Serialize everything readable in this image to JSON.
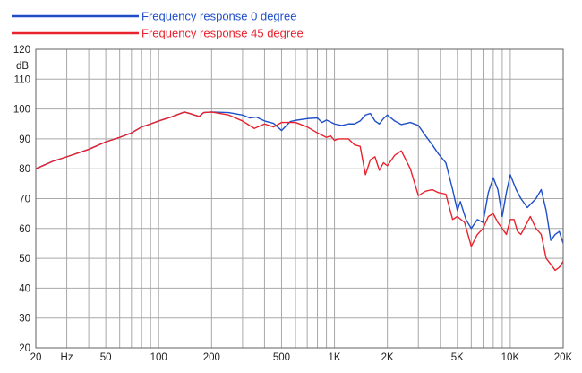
{
  "chart_data": {
    "type": "line",
    "title": "",
    "xlabel": "",
    "ylabel": "dB",
    "x_scale": "log",
    "xlim": [
      20,
      20000
    ],
    "ylim": [
      20,
      120
    ],
    "grid": true,
    "legend": "top-left",
    "x_tick_labels": [
      {
        "value": 20,
        "label": "20"
      },
      {
        "value": 30,
        "label": "Hz"
      },
      {
        "value": 50,
        "label": "50"
      },
      {
        "value": 100,
        "label": "100"
      },
      {
        "value": 200,
        "label": "200"
      },
      {
        "value": 500,
        "label": "500"
      },
      {
        "value": 1000,
        "label": "1K"
      },
      {
        "value": 2000,
        "label": "2K"
      },
      {
        "value": 5000,
        "label": "5K"
      },
      {
        "value": 10000,
        "label": "10K"
      },
      {
        "value": 20000,
        "label": "20K"
      }
    ],
    "y_ticks": [
      20,
      30,
      40,
      50,
      60,
      70,
      80,
      90,
      100,
      110,
      120
    ],
    "series": [
      {
        "name": "Frequency response 0 degree",
        "color": "#1f4fc8",
        "points": [
          [
            20,
            80
          ],
          [
            25,
            82.5
          ],
          [
            30,
            84
          ],
          [
            40,
            86.5
          ],
          [
            50,
            89
          ],
          [
            60,
            90.5
          ],
          [
            70,
            92
          ],
          [
            80,
            94
          ],
          [
            90,
            95
          ],
          [
            100,
            96
          ],
          [
            120,
            97.5
          ],
          [
            140,
            99
          ],
          [
            150,
            98.5
          ],
          [
            170,
            97.5
          ],
          [
            180,
            98.8
          ],
          [
            200,
            99
          ],
          [
            250,
            98.8
          ],
          [
            300,
            98
          ],
          [
            330,
            97
          ],
          [
            360,
            97.3
          ],
          [
            400,
            96
          ],
          [
            450,
            95.2
          ],
          [
            500,
            92.8
          ],
          [
            560,
            95.8
          ],
          [
            600,
            96.2
          ],
          [
            700,
            96.8
          ],
          [
            800,
            97
          ],
          [
            850,
            95.5
          ],
          [
            900,
            96.3
          ],
          [
            1000,
            95
          ],
          [
            1100,
            94.5
          ],
          [
            1200,
            95
          ],
          [
            1300,
            95
          ],
          [
            1400,
            96
          ],
          [
            1500,
            98
          ],
          [
            1600,
            98.5
          ],
          [
            1700,
            96
          ],
          [
            1800,
            95
          ],
          [
            1900,
            96.8
          ],
          [
            2000,
            98
          ],
          [
            2200,
            96
          ],
          [
            2400,
            94.8
          ],
          [
            2700,
            95.5
          ],
          [
            3000,
            94.5
          ],
          [
            3300,
            91
          ],
          [
            3600,
            88
          ],
          [
            3900,
            85
          ],
          [
            4300,
            82
          ],
          [
            4700,
            73
          ],
          [
            5000,
            66
          ],
          [
            5200,
            69
          ],
          [
            5600,
            63
          ],
          [
            6000,
            60
          ],
          [
            6500,
            63
          ],
          [
            7000,
            62
          ],
          [
            7500,
            72
          ],
          [
            8000,
            77
          ],
          [
            8500,
            73
          ],
          [
            9000,
            64
          ],
          [
            9500,
            72
          ],
          [
            10000,
            78
          ],
          [
            10800,
            73
          ],
          [
            11500,
            70
          ],
          [
            12500,
            67
          ],
          [
            14000,
            70
          ],
          [
            15000,
            73
          ],
          [
            16000,
            66
          ],
          [
            17000,
            56
          ],
          [
            18000,
            58
          ],
          [
            19000,
            59
          ],
          [
            20000,
            55
          ]
        ]
      },
      {
        "name": "Frequency response 45 degree",
        "color": "#e8232e",
        "points": [
          [
            20,
            80
          ],
          [
            25,
            82.5
          ],
          [
            30,
            84
          ],
          [
            40,
            86.5
          ],
          [
            50,
            89
          ],
          [
            60,
            90.5
          ],
          [
            70,
            92
          ],
          [
            80,
            94
          ],
          [
            90,
            95
          ],
          [
            100,
            96
          ],
          [
            120,
            97.5
          ],
          [
            140,
            99
          ],
          [
            150,
            98.5
          ],
          [
            170,
            97.5
          ],
          [
            180,
            98.8
          ],
          [
            200,
            99
          ],
          [
            250,
            98
          ],
          [
            300,
            96
          ],
          [
            350,
            93.5
          ],
          [
            400,
            95
          ],
          [
            450,
            94
          ],
          [
            500,
            95.5
          ],
          [
            600,
            95.5
          ],
          [
            700,
            94
          ],
          [
            800,
            92
          ],
          [
            900,
            90.5
          ],
          [
            950,
            91
          ],
          [
            1000,
            89.5
          ],
          [
            1050,
            90
          ],
          [
            1200,
            90
          ],
          [
            1300,
            88
          ],
          [
            1400,
            87.5
          ],
          [
            1500,
            78
          ],
          [
            1600,
            83
          ],
          [
            1700,
            84
          ],
          [
            1800,
            79.5
          ],
          [
            1900,
            82
          ],
          [
            2000,
            81
          ],
          [
            2200,
            84.5
          ],
          [
            2400,
            86
          ],
          [
            2700,
            80
          ],
          [
            3000,
            71
          ],
          [
            3300,
            72.5
          ],
          [
            3600,
            73
          ],
          [
            3900,
            72
          ],
          [
            4300,
            71.5
          ],
          [
            4700,
            63
          ],
          [
            5000,
            64
          ],
          [
            5500,
            62
          ],
          [
            6000,
            54
          ],
          [
            6500,
            58
          ],
          [
            7000,
            60
          ],
          [
            7500,
            64
          ],
          [
            8000,
            65
          ],
          [
            8500,
            62
          ],
          [
            9000,
            60
          ],
          [
            9500,
            58
          ],
          [
            10000,
            63
          ],
          [
            10500,
            63
          ],
          [
            11000,
            59
          ],
          [
            11500,
            58
          ],
          [
            13000,
            64
          ],
          [
            14000,
            60
          ],
          [
            15000,
            58
          ],
          [
            16000,
            50
          ],
          [
            17000,
            48
          ],
          [
            18000,
            46
          ],
          [
            19000,
            47
          ],
          [
            20000,
            49
          ]
        ]
      }
    ]
  }
}
